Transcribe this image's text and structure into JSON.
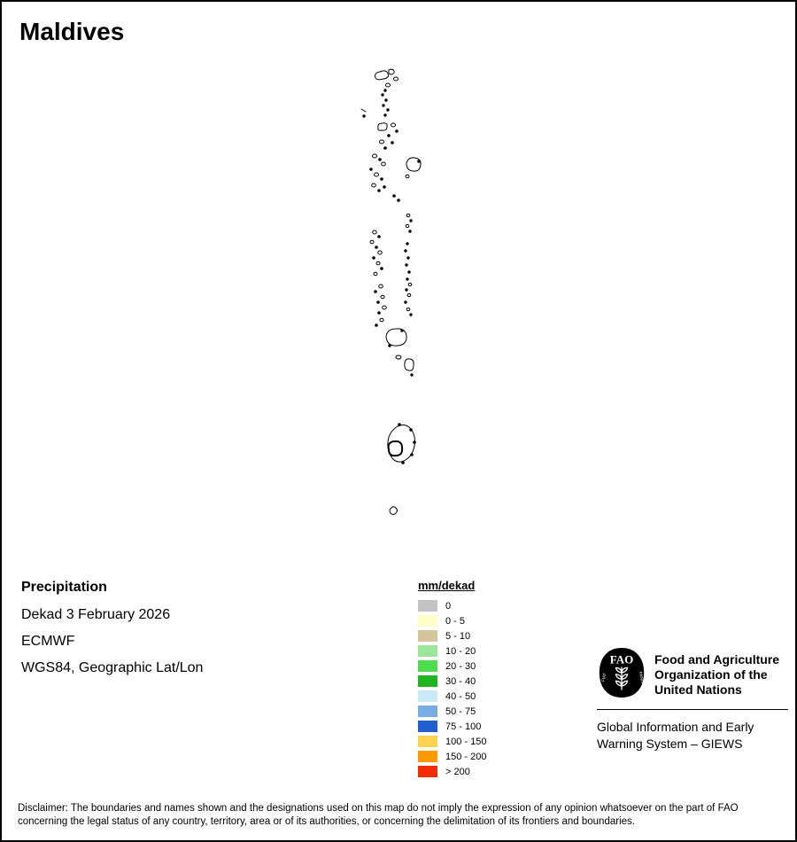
{
  "page": {
    "title": "Maldives"
  },
  "info": {
    "heading": "Precipitation",
    "dekad": "Dekad 3 February 2026",
    "source": "ECMWF",
    "projection": "WGS84, Geographic Lat/Lon"
  },
  "legend": {
    "title": "mm/dekad",
    "classes": [
      {
        "label": "0",
        "color": "#c2c2c2"
      },
      {
        "label": "0 - 5",
        "color": "#ffffc8"
      },
      {
        "label": "5 - 10",
        "color": "#d7c49c"
      },
      {
        "label": "10 - 20",
        "color": "#9be69b"
      },
      {
        "label": "20 - 30",
        "color": "#4fdc4f"
      },
      {
        "label": "30 - 40",
        "color": "#21b421"
      },
      {
        "label": "40 - 50",
        "color": "#c9e9f7"
      },
      {
        "label": "50 - 75",
        "color": "#79ace1"
      },
      {
        "label": "75 - 100",
        "color": "#1f5fce"
      },
      {
        "label": "100 - 150",
        "color": "#ffd34f"
      },
      {
        "label": "150 - 200",
        "color": "#ff9900"
      },
      {
        "label": "> 200",
        "color": "#f22b00"
      }
    ]
  },
  "branding": {
    "fao_logo_text": "FAO",
    "motto_fiat": "FIAT",
    "motto_panis": "PANIS",
    "org_name": "Food and Agriculture Organization of the United Nations",
    "giews": "Global Information and Early Warning System – GIEWS"
  },
  "disclaimer": "Disclaimer: The boundaries and names shown and the designations used on this map do not imply the expression of any opinion whatsoever on the part of FAO concerning the legal status of any country, territory, area or of its authorities, or concerning the delimitation of its frontiers and boundaries."
}
